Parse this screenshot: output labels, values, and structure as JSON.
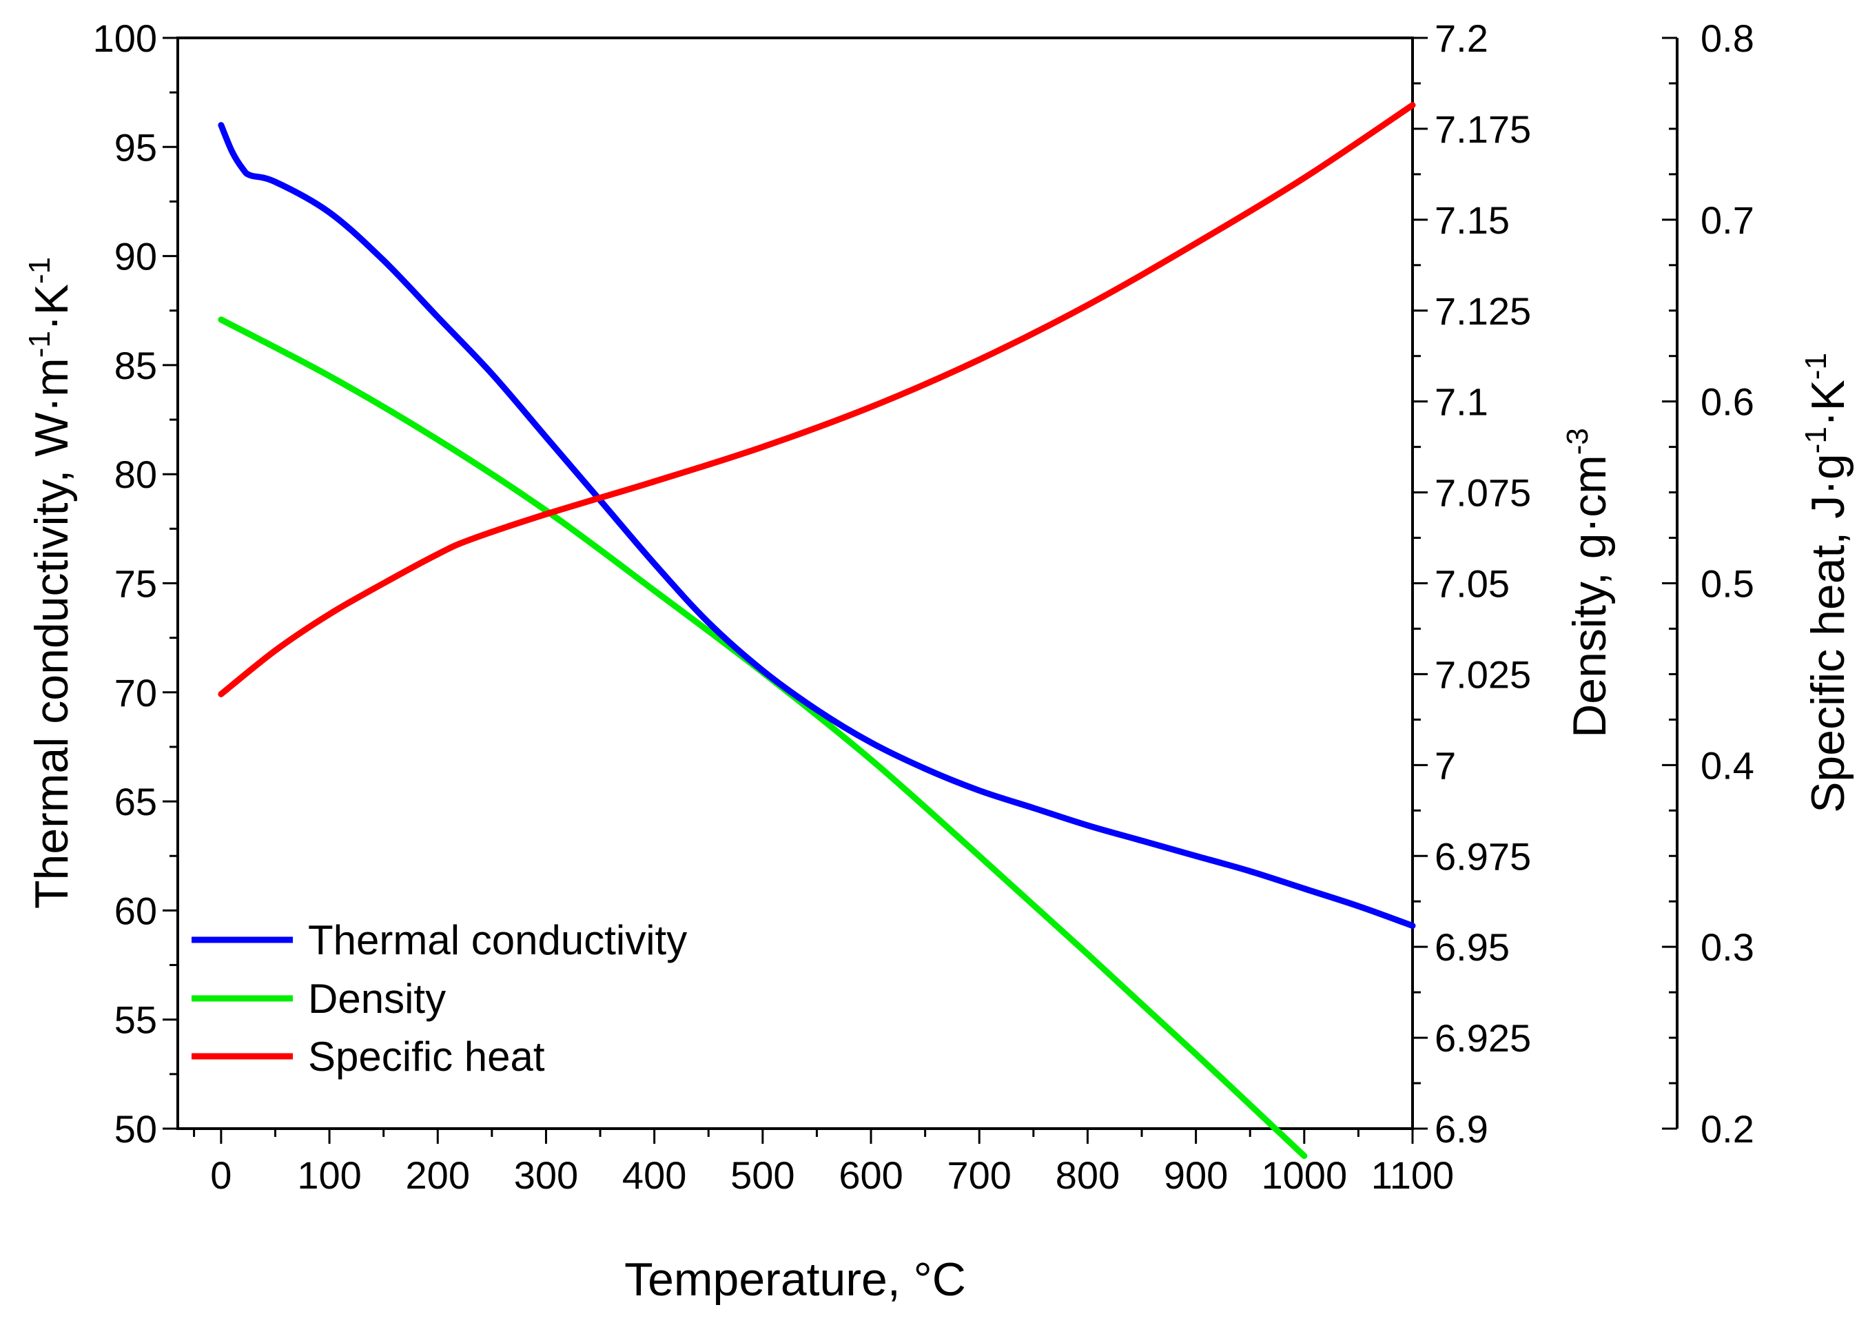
{
  "chart_data": {
    "type": "line",
    "x_axis": {
      "title": "Temperature, °C",
      "range": [
        -40,
        1100
      ],
      "ticks": [
        0,
        100,
        200,
        300,
        400,
        500,
        600,
        700,
        800,
        900,
        1000,
        1100
      ],
      "tick_labels": [
        "0",
        "100",
        "200",
        "300",
        "400",
        "500",
        "600",
        "700",
        "800",
        "900",
        "1000",
        "1100"
      ],
      "minor_step": 50
    },
    "y_axes": [
      {
        "id": "conductivity",
        "title_main": "Thermal conductivity,  W·m",
        "title_sup1": "-1",
        "title_mid": "·K",
        "title_sup2": "-1",
        "range": [
          50,
          100
        ],
        "ticks": [
          50,
          55,
          60,
          65,
          70,
          75,
          80,
          85,
          90,
          95,
          100
        ],
        "tick_labels": [
          "50",
          "55",
          "60",
          "65",
          "70",
          "75",
          "80",
          "85",
          "90",
          "95",
          "100"
        ],
        "minor_step": 2.5
      },
      {
        "id": "density",
        "title_main": "Density,  g·cm",
        "title_sup1": "-3",
        "range": [
          6.9,
          7.2
        ],
        "ticks": [
          6.9,
          6.925,
          6.95,
          6.975,
          7.0,
          7.025,
          7.05,
          7.075,
          7.1,
          7.125,
          7.15,
          7.175,
          7.2
        ],
        "tick_labels": [
          "6.9",
          "6.925",
          "6.95",
          "6.975",
          "7",
          "7.025",
          "7.05",
          "7.075",
          "7.1",
          "7.125",
          "7.15",
          "7.175",
          "7.2"
        ],
        "minor_step": 0.0125
      },
      {
        "id": "specific_heat",
        "title_main": "Specific heat,  J·g",
        "title_sup1": "-1",
        "title_mid": "·K",
        "title_sup2": "-1",
        "range": [
          0.2,
          0.8
        ],
        "ticks": [
          0.2,
          0.3,
          0.4,
          0.5,
          0.6,
          0.7,
          0.8
        ],
        "tick_labels": [
          "0.2",
          "0.3",
          "0.4",
          "0.5",
          "0.6",
          "0.7",
          "0.8"
        ],
        "minor_step": 0.025
      }
    ],
    "legend": {
      "position": "bottom-left",
      "entries": [
        "Thermal conductivity",
        "Density",
        "Specific heat"
      ]
    },
    "series": [
      {
        "name": "Thermal conductivity",
        "axis": "conductivity",
        "color": "#0000ff",
        "x": [
          0,
          10,
          20,
          27,
          50,
          100,
          150,
          200,
          250,
          300,
          350,
          400,
          450,
          500,
          550,
          600,
          650,
          700,
          750,
          800,
          850,
          900,
          950,
          1000,
          1050,
          1100
        ],
        "y": [
          96.0,
          94.8,
          94.0,
          93.7,
          93.4,
          92.0,
          89.8,
          87.2,
          84.6,
          81.7,
          78.8,
          75.9,
          73.2,
          71.0,
          69.2,
          67.7,
          66.5,
          65.5,
          64.7,
          63.9,
          63.2,
          62.5,
          61.8,
          61.0,
          60.2,
          59.3
        ]
      },
      {
        "name": "Density",
        "axis": "density",
        "color": "#00ee00",
        "x": [
          0,
          100,
          200,
          300,
          400,
          500,
          600,
          700,
          800,
          900,
          1000
        ],
        "y": [
          7.1225,
          7.107,
          7.0895,
          7.07,
          7.048,
          7.0255,
          7.0015,
          6.975,
          6.948,
          6.9205,
          6.8925
        ]
      },
      {
        "name": "Specific heat",
        "axis": "specific_heat",
        "color": "#ff0000",
        "x": [
          0,
          50,
          100,
          150,
          200,
          230,
          300,
          400,
          500,
          600,
          700,
          800,
          900,
          1000,
          1100
        ],
        "y": [
          0.439,
          0.463,
          0.483,
          0.5,
          0.516,
          0.524,
          0.538,
          0.556,
          0.575,
          0.597,
          0.623,
          0.653,
          0.687,
          0.723,
          0.763
        ]
      }
    ]
  }
}
